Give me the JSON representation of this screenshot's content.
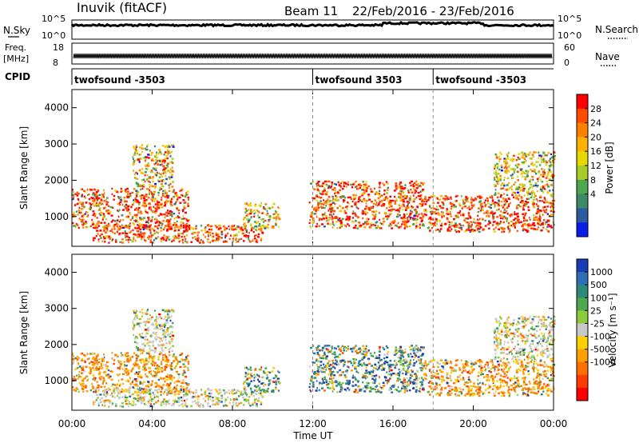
{
  "header": {
    "station": "Inuvik (fitACF)",
    "beam": "Beam 11",
    "date_range": "22/Feb/2016 - 23/Feb/2016"
  },
  "left_labels": {
    "nsky": "N.Sky",
    "nsky_ticks": [
      "10^5",
      "10^0"
    ],
    "freq_line1": "Freq.",
    "freq_line2": "[MHz]",
    "freq_ticks": [
      "18",
      "8"
    ],
    "cpid": "CPID"
  },
  "right_labels": {
    "nsearch": "N.Search",
    "nsearch_ticks": [
      "10^5",
      "10^0"
    ],
    "nave": "Nave",
    "nave_ticks": [
      "60",
      "0"
    ]
  },
  "cpid_segments": [
    {
      "label": "twofsound -3503",
      "start_hour": 0
    },
    {
      "label": "twofsound 3503",
      "start_hour": 12
    },
    {
      "label": "twofsound -3503",
      "start_hour": 18
    }
  ],
  "axes": {
    "y_label": "Slant Range [km]",
    "x_label": "Time UT",
    "x_ticks": [
      "00:00",
      "04:00",
      "08:00",
      "12:00",
      "16:00",
      "20:00",
      "00:00"
    ],
    "y_ticks": [
      "1000",
      "2000",
      "3000",
      "4000"
    ]
  },
  "power_colorbar": {
    "title": "Power [dB]",
    "ticks": [
      "28",
      "24",
      "20",
      "16",
      "12",
      "8",
      "4"
    ],
    "colors": [
      "#ff0000",
      "#ff4a00",
      "#ff8000",
      "#ffb000",
      "#e6d800",
      "#a8cc2a",
      "#4ea84e",
      "#3c8a68",
      "#2e5aa0",
      "#0a1ee8"
    ]
  },
  "velocity_colorbar": {
    "title": "Velocity [m s⁻¹]",
    "ticks": [
      "1000",
      "500",
      "100",
      "25",
      "-25",
      "-100",
      "-500",
      "-1000"
    ],
    "colors": [
      "#1a3cb4",
      "#2e6eb4",
      "#2e8a78",
      "#4ea84e",
      "#8ccc3c",
      "#c8c8c8",
      "#ffd000",
      "#ffa000",
      "#ff7000",
      "#ff3c00",
      "#ff0000"
    ]
  },
  "chart_data": [
    {
      "type": "heatmap",
      "title": "Power [dB]",
      "xlabel": "Time UT",
      "ylabel": "Slant Range [km]",
      "x_ticks": [
        "00:00",
        "04:00",
        "08:00",
        "12:00",
        "16:00",
        "20:00",
        "00:00"
      ],
      "xlim_hours": [
        0,
        24
      ],
      "ylim_km": [
        180,
        4500
      ],
      "y_ticks": [
        1000,
        2000,
        3000,
        4000
      ],
      "colorbar_ticks_dB": [
        4,
        8,
        12,
        16,
        20,
        24,
        28
      ],
      "scatter_bands": [
        {
          "start_hour": 0.0,
          "end_hour": 5.8,
          "min_km": 700,
          "max_km": 1800,
          "level": "strong"
        },
        {
          "start_hour": 3.0,
          "end_hour": 5.0,
          "min_km": 1800,
          "max_km": 3000,
          "level": "moderate"
        },
        {
          "start_hour": 1.0,
          "end_hour": 9.5,
          "min_km": 300,
          "max_km": 800,
          "level": "strong"
        },
        {
          "start_hour": 8.5,
          "end_hour": 10.3,
          "min_km": 700,
          "max_km": 1400,
          "level": "moderate"
        },
        {
          "start_hour": 11.8,
          "end_hour": 17.5,
          "min_km": 700,
          "max_km": 2000,
          "level": "strong"
        },
        {
          "start_hour": 17.5,
          "end_hour": 24.0,
          "min_km": 600,
          "max_km": 1600,
          "level": "strong"
        },
        {
          "start_hour": 21.0,
          "end_hour": 24.0,
          "min_km": 1600,
          "max_km": 2800,
          "level": "moderate"
        }
      ]
    },
    {
      "type": "heatmap",
      "title": "Velocity [m s⁻¹]",
      "xlabel": "Time UT",
      "ylabel": "Slant Range [km]",
      "x_ticks": [
        "00:00",
        "04:00",
        "08:00",
        "12:00",
        "16:00",
        "20:00",
        "00:00"
      ],
      "xlim_hours": [
        0,
        24
      ],
      "ylim_km": [
        180,
        4500
      ],
      "y_ticks": [
        1000,
        2000,
        3000,
        4000
      ],
      "colorbar_ticks_ms": [
        1000,
        500,
        100,
        25,
        -25,
        -100,
        -500,
        -1000
      ],
      "scatter_bands": [
        {
          "start_hour": 0.0,
          "end_hour": 5.8,
          "min_km": 700,
          "max_km": 1800,
          "dominant": "-100 to -500"
        },
        {
          "start_hour": 3.0,
          "end_hour": 5.0,
          "min_km": 1800,
          "max_km": 3000,
          "dominant": "-25 to 25"
        },
        {
          "start_hour": 1.0,
          "end_hour": 9.5,
          "min_km": 300,
          "max_km": 800,
          "dominant": "-25 to 25"
        },
        {
          "start_hour": 8.5,
          "end_hour": 10.3,
          "min_km": 700,
          "max_km": 1400,
          "dominant": "25 to 500"
        },
        {
          "start_hour": 11.8,
          "end_hour": 17.5,
          "min_km": 700,
          "max_km": 2000,
          "dominant": "100 to 1000"
        },
        {
          "start_hour": 17.5,
          "end_hour": 24.0,
          "min_km": 600,
          "max_km": 1600,
          "dominant": "-100 to -500"
        },
        {
          "start_hour": 21.0,
          "end_hour": 24.0,
          "min_km": 1600,
          "max_km": 2800,
          "dominant": "-25 to 25"
        }
      ]
    }
  ]
}
